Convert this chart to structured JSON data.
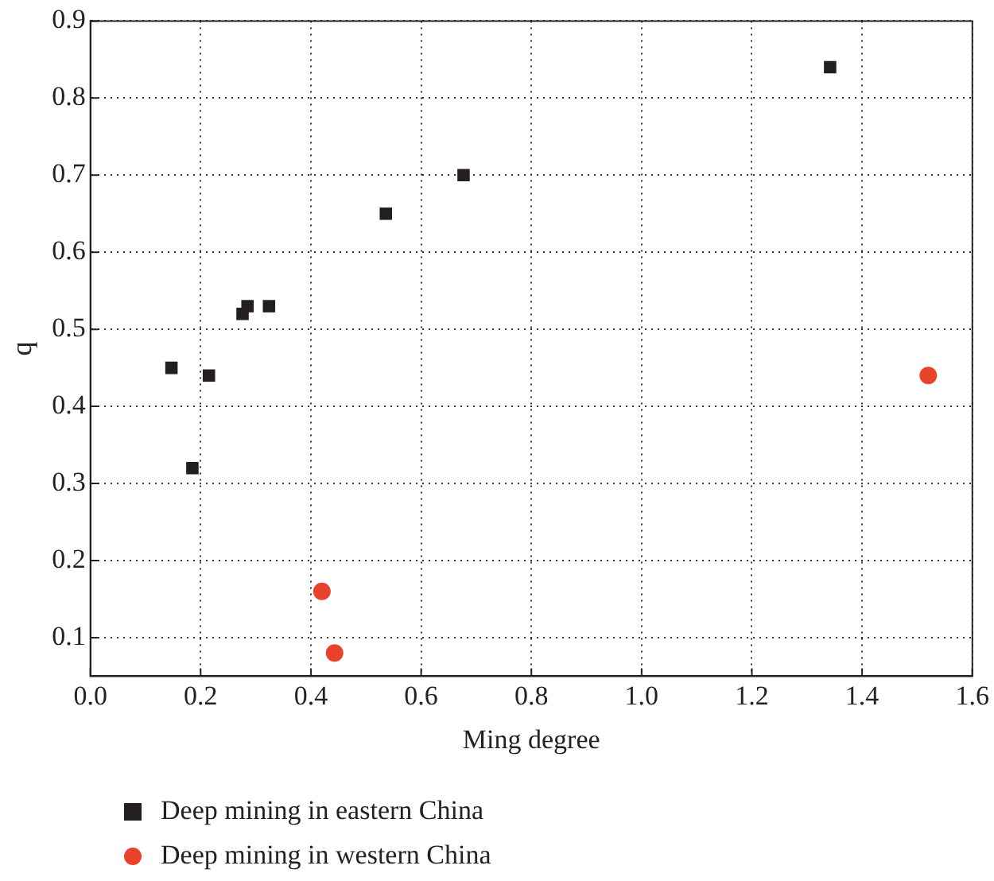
{
  "chart_data": {
    "type": "scatter",
    "xlabel": "Ming degree",
    "ylabel": "q",
    "xlim": [
      0,
      1.6
    ],
    "xticks": [
      {
        "value": 0,
        "label": "0.0"
      },
      0.2,
      0.4,
      0.6,
      0.8,
      {
        "value": 1,
        "label": "1.0"
      },
      1.2,
      1.4,
      1.6
    ],
    "ylim": [
      0.05,
      0.9
    ],
    "yticks": [
      0.1,
      0.2,
      0.3,
      0.4,
      0.5,
      0.6,
      0.7,
      0.8,
      0.9
    ],
    "grid": true,
    "line_style": "dotted",
    "legend": "bottom left",
    "series": [
      {
        "name": "Deep mining in eastern China",
        "color": "#231f20",
        "marker": "square",
        "x": [
          0.147,
          0.185,
          0.215,
          0.276,
          0.285,
          0.324,
          0.536,
          0.677,
          1.342
        ],
        "values": [
          0.45,
          0.32,
          0.44,
          0.52,
          0.53,
          0.53,
          0.65,
          0.7,
          0.84
        ]
      },
      {
        "name": "Deep mining in western China",
        "color": "#e8412c",
        "marker": "circle",
        "x": [
          0.42,
          0.443,
          1.52
        ],
        "values": [
          0.16,
          0.08,
          0.44
        ]
      }
    ]
  }
}
